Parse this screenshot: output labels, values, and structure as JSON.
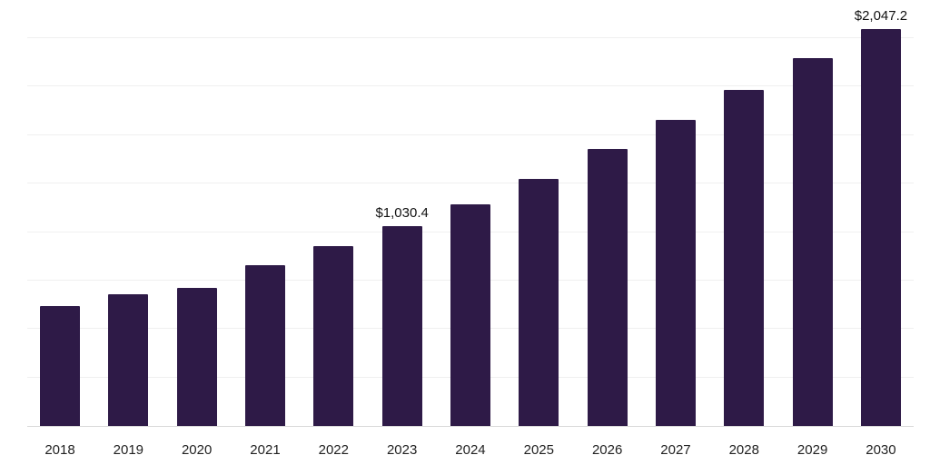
{
  "chart_data": {
    "type": "bar",
    "title": "",
    "xlabel": "",
    "ylabel": "",
    "categories": [
      "2018",
      "2019",
      "2020",
      "2021",
      "2022",
      "2023",
      "2024",
      "2025",
      "2026",
      "2027",
      "2028",
      "2029",
      "2030"
    ],
    "values": [
      620,
      678,
      713,
      830,
      928,
      1030.4,
      1143,
      1276,
      1430,
      1578,
      1731,
      1895,
      2047.2
    ],
    "data_labels": {
      "2023": "$1,030.4",
      "2030": "$2,047.2"
    },
    "ylim": [
      0,
      2150
    ],
    "grid_step": 250,
    "grid": true,
    "legend_position": "none",
    "colors": {
      "bar": "#2e1a47",
      "gridline": "#f0f0f0",
      "axis_line": "#d9d9d9",
      "tick_text": "#222222",
      "label_text": "#111111"
    }
  }
}
